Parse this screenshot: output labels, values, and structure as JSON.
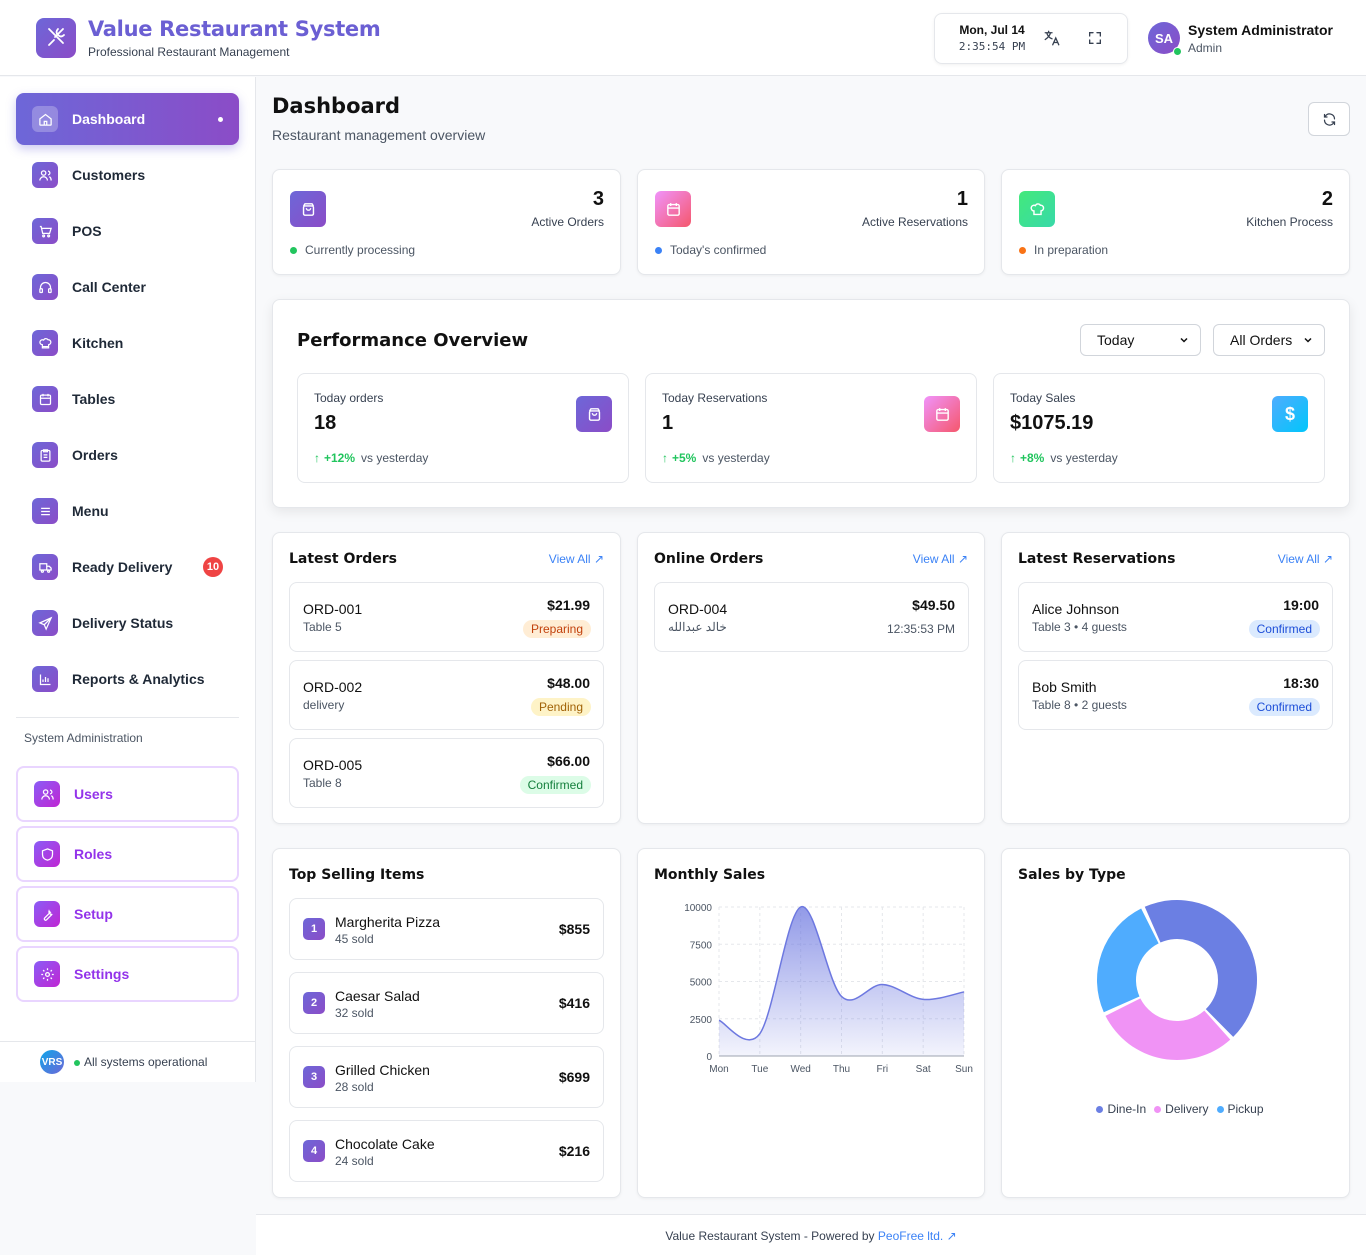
{
  "app": {
    "title": "Value Restaurant System",
    "subtitle": "Professional Restaurant Management"
  },
  "header": {
    "date": "Mon, Jul 14",
    "time": "2:35:54 PM",
    "user_initials": "SA",
    "user_name": "System Administrator",
    "user_role": "Admin"
  },
  "sidebar": {
    "items": [
      {
        "label": "Dashboard",
        "icon": "home-icon"
      },
      {
        "label": "Customers",
        "icon": "users-icon"
      },
      {
        "label": "POS",
        "icon": "cart-icon"
      },
      {
        "label": "Call Center",
        "icon": "headset-icon"
      },
      {
        "label": "Kitchen",
        "icon": "chef-hat-icon"
      },
      {
        "label": "Tables",
        "icon": "calendar-icon"
      },
      {
        "label": "Orders",
        "icon": "clipboard-icon"
      },
      {
        "label": "Menu",
        "icon": "menu-icon"
      },
      {
        "label": "Ready Delivery",
        "icon": "truck-icon",
        "badge": "10"
      },
      {
        "label": "Delivery Status",
        "icon": "send-icon"
      },
      {
        "label": "Reports & Analytics",
        "icon": "bar-chart-icon"
      }
    ],
    "section_label": "System Administration",
    "admin_items": [
      {
        "label": "Users",
        "icon": "users-icon"
      },
      {
        "label": "Roles",
        "icon": "shield-icon"
      },
      {
        "label": "Setup",
        "icon": "wrench-icon"
      },
      {
        "label": "Settings",
        "icon": "gear-icon"
      }
    ],
    "footer_badge": "VRS",
    "footer_status": "All systems operational"
  },
  "page": {
    "title": "Dashboard",
    "subtitle": "Restaurant management overview"
  },
  "stats": [
    {
      "value": "3",
      "label": "Active Orders",
      "note": "Currently processing",
      "color": "#22c55e"
    },
    {
      "value": "1",
      "label": "Active Reservations",
      "note": "Today's confirmed",
      "color": "#3b82f6"
    },
    {
      "value": "2",
      "label": "Kitchen Process",
      "note": "In preparation",
      "color": "#f97316"
    }
  ],
  "performance": {
    "title": "Performance Overview",
    "period": "Today",
    "filter": "All Orders",
    "cards": [
      {
        "label": "Today orders",
        "value": "18",
        "trend": "+12%",
        "note": "vs yesterday"
      },
      {
        "label": "Today Reservations",
        "value": "1",
        "trend": "+5%",
        "note": "vs yesterday"
      },
      {
        "label": "Today Sales",
        "value": "$1075.19",
        "trend": "+8%",
        "note": "vs yesterday"
      }
    ]
  },
  "latest_orders": {
    "title": "Latest Orders",
    "view_all": "View All",
    "items": [
      {
        "id": "ORD-001",
        "sub": "Table 5",
        "amount": "$21.99",
        "status": "Preparing"
      },
      {
        "id": "ORD-002",
        "sub": "delivery",
        "amount": "$48.00",
        "status": "Pending"
      },
      {
        "id": "ORD-005",
        "sub": "Table 8",
        "amount": "$66.00",
        "status": "Confirmed"
      }
    ]
  },
  "online_orders": {
    "title": "Online Orders",
    "view_all": "View All",
    "items": [
      {
        "id": "ORD-004",
        "sub": "خالد عبدالله",
        "amount": "$49.50",
        "time": "12:35:53 PM"
      }
    ]
  },
  "latest_reservations": {
    "title": "Latest Reservations",
    "view_all": "View All",
    "items": [
      {
        "name": "Alice Johnson",
        "sub": "Table 3 • 4 guests",
        "time": "19:00",
        "status": "Confirmed"
      },
      {
        "name": "Bob Smith",
        "sub": "Table 8 • 2 guests",
        "time": "18:30",
        "status": "Confirmed"
      }
    ]
  },
  "top_selling": {
    "title": "Top Selling Items",
    "items": [
      {
        "rank": "1",
        "name": "Margherita Pizza",
        "sold": "45 sold",
        "amount": "$855"
      },
      {
        "rank": "2",
        "name": "Caesar Salad",
        "sold": "32 sold",
        "amount": "$416"
      },
      {
        "rank": "3",
        "name": "Grilled Chicken",
        "sold": "28 sold",
        "amount": "$699"
      },
      {
        "rank": "4",
        "name": "Chocolate Cake",
        "sold": "24 sold",
        "amount": "$216"
      }
    ]
  },
  "monthly_sales_title": "Monthly Sales",
  "sales_by_type_title": "Sales by Type",
  "chart_data": [
    {
      "type": "area",
      "title": "Monthly Sales",
      "categories": [
        "Mon",
        "Tue",
        "Wed",
        "Thu",
        "Fri",
        "Sat",
        "Sun"
      ],
      "values": [
        2400,
        1500,
        10000,
        4000,
        4800,
        3800,
        4300
      ],
      "y_ticks": [
        "10000",
        "7500",
        "5000",
        "2500",
        "0"
      ],
      "ylim": [
        0,
        10000
      ],
      "grid": true,
      "color": "#6d78e0"
    },
    {
      "type": "pie",
      "title": "Sales by Type",
      "labels": [
        "Dine-In",
        "Delivery",
        "Pickup"
      ],
      "values": [
        45,
        30,
        25
      ],
      "colors": [
        "#6b7fe3",
        "#f093f5",
        "#4facfe"
      ],
      "legend": "bottom"
    }
  ],
  "footer": {
    "text": "Value Restaurant System - Powered by",
    "link": "PeoFree ltd."
  }
}
